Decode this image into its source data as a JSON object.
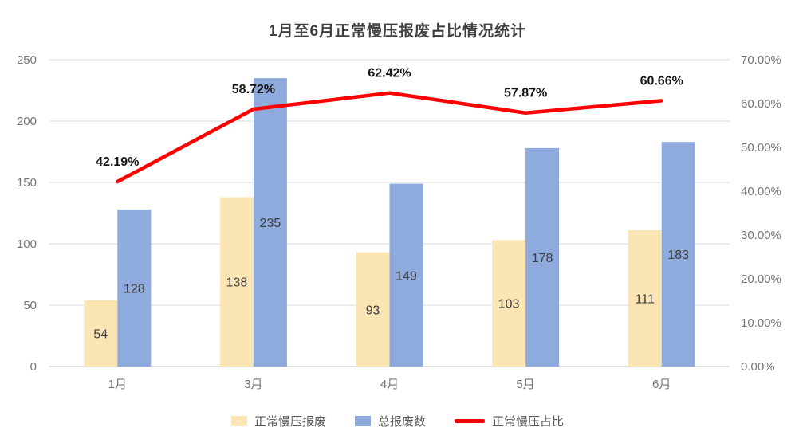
{
  "chart_data": {
    "type": "combo",
    "title": "1月至6月正常慢压报废占比情况统计",
    "categories": [
      "1月",
      "3月",
      "4月",
      "5月",
      "6月"
    ],
    "series": [
      {
        "name": "正常慢压报废",
        "type": "bar",
        "axis": "left",
        "color": "#FBE5B5",
        "values": [
          54,
          138,
          93,
          103,
          111
        ]
      },
      {
        "name": "总报废数",
        "type": "bar",
        "axis": "left",
        "color": "#8FAADC",
        "values": [
          128,
          235,
          149,
          178,
          183
        ]
      },
      {
        "name": "正常慢压占比",
        "type": "line",
        "axis": "right",
        "color": "#FE0000",
        "values": [
          42.19,
          58.72,
          62.42,
          57.87,
          60.66
        ],
        "label_suffix": "%"
      }
    ],
    "left_axis": {
      "min": 0,
      "max": 250,
      "step": 50
    },
    "right_axis": {
      "min": 0,
      "max": 70,
      "step": 10,
      "decimals": 2,
      "suffix": "%"
    },
    "grid": {
      "color": "#D9D9D9",
      "axis_color": "#BFBFBF"
    },
    "legend_position": "bottom"
  }
}
